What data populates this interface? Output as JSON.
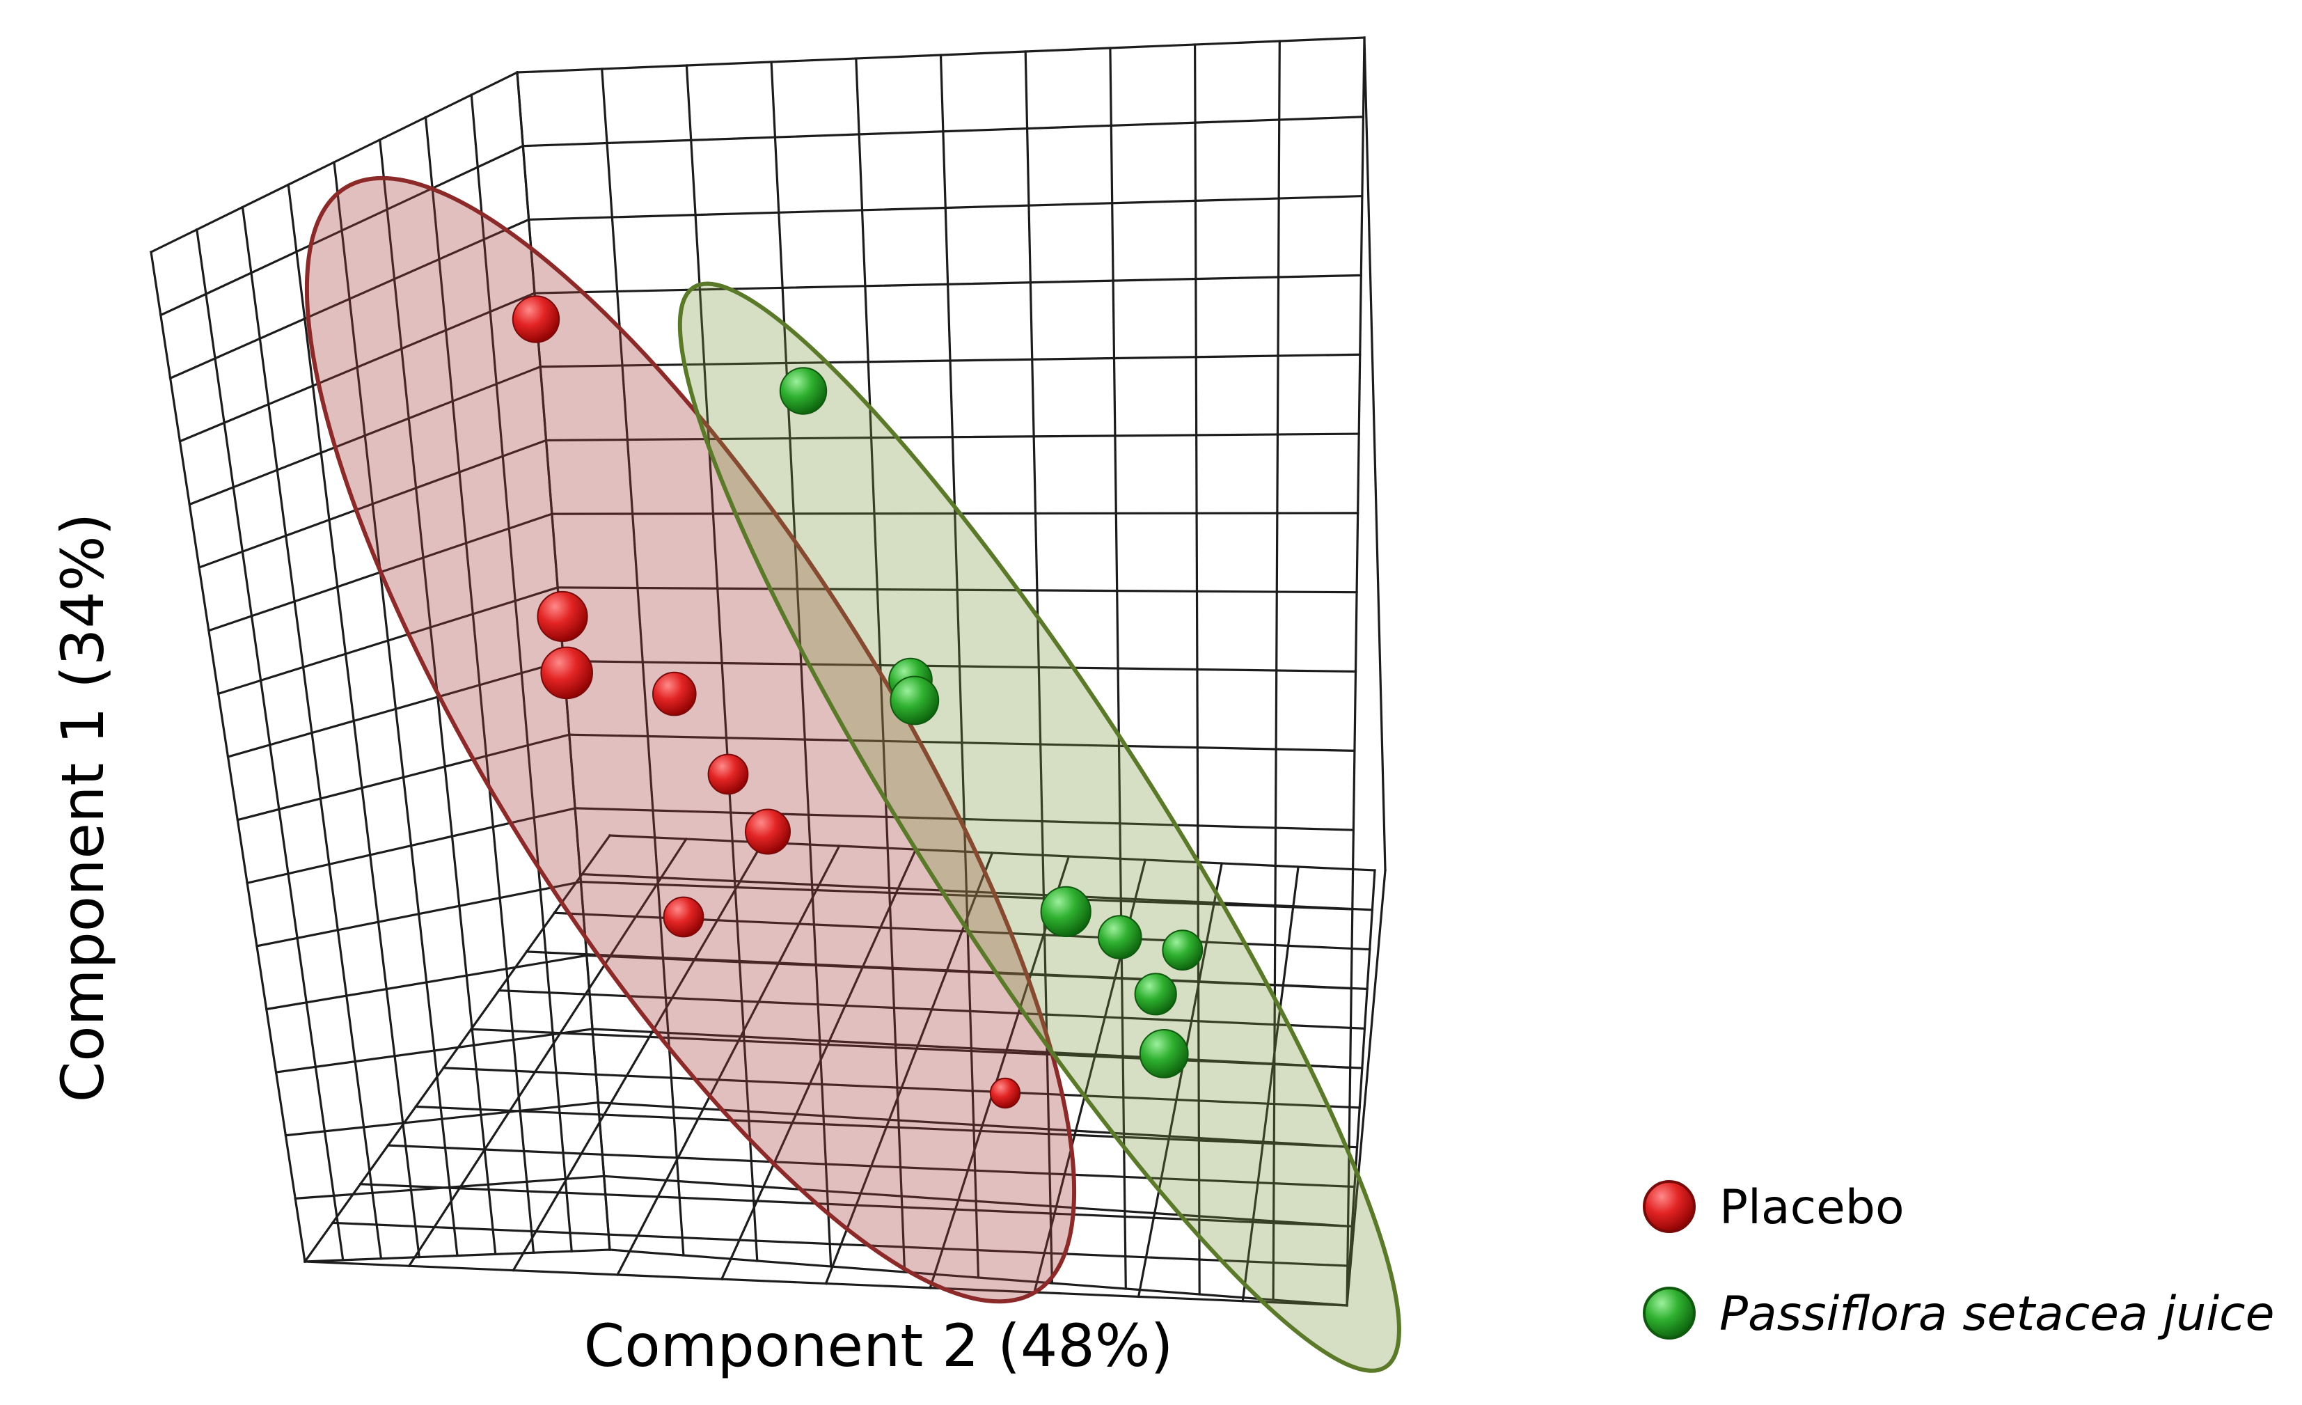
{
  "chart_data": {
    "type": "scatter",
    "projection": "3d",
    "title": "",
    "xlabel": "Component 2 (48%)",
    "ylabel": "Component 1 (34%)",
    "zlabel": "",
    "grid": true,
    "legend_position": "bottom-right",
    "series": [
      {
        "name": "Placebo",
        "color": "#d42020",
        "ellipse_color": "#8c2a2a",
        "points": [
          {
            "x": -0.55,
            "y": 0.55,
            "z": 0.3
          },
          {
            "x": -0.45,
            "y": -0.05,
            "z": 0.4
          },
          {
            "x": -0.42,
            "y": -0.15,
            "z": 0.45
          },
          {
            "x": -0.28,
            "y": -0.15,
            "z": 0.2
          },
          {
            "x": -0.2,
            "y": -0.3,
            "z": 0.1
          },
          {
            "x": -0.05,
            "y": -0.3,
            "z": 0.25
          },
          {
            "x": -0.3,
            "y": -0.7,
            "z": 0.1
          },
          {
            "x": 0.3,
            "y": -0.75,
            "z": -0.2
          }
        ]
      },
      {
        "name": "Passiflora setacea juice",
        "color": "#2aa82a",
        "ellipse_color": "#5a7a2a",
        "points": [
          {
            "x": 0.05,
            "y": 0.8,
            "z": 0.3
          },
          {
            "x": 0.25,
            "y": 0.25,
            "z": 0.2
          },
          {
            "x": 0.32,
            "y": 0.28,
            "z": 0.35
          },
          {
            "x": 0.68,
            "y": 0.05,
            "z": 0.4
          },
          {
            "x": 0.72,
            "y": -0.02,
            "z": 0.2
          },
          {
            "x": 0.82,
            "y": 0.0,
            "z": 0.1
          },
          {
            "x": 0.78,
            "y": -0.12,
            "z": 0.15
          },
          {
            "x": 0.88,
            "y": -0.15,
            "z": 0.35
          }
        ]
      }
    ]
  }
}
